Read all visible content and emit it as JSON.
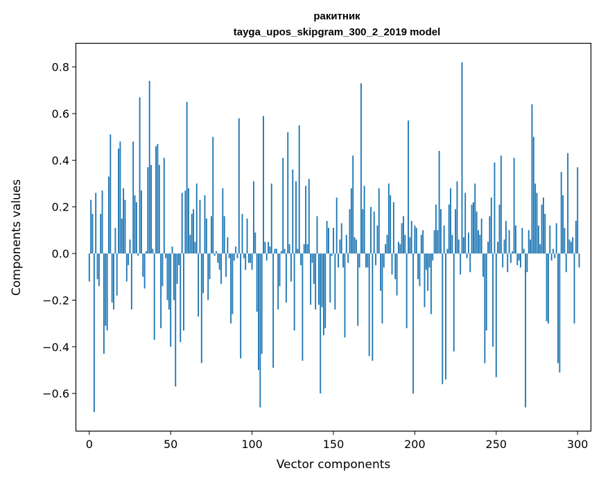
{
  "chart_data": {
    "type": "bar",
    "title": "ракитник",
    "subtitle": "tayga_upos_skipgram_300_2_2019 model",
    "xlabel": "Vector components",
    "ylabel": "Components values",
    "xlim": [
      -8,
      308
    ],
    "ylim": [
      -0.76,
      0.9
    ],
    "xticks": [
      0,
      50,
      100,
      150,
      200,
      250,
      300
    ],
    "xtick_labels": [
      "0",
      "50",
      "100",
      "150",
      "200",
      "250",
      "300"
    ],
    "yticks": [
      -0.6,
      -0.4,
      -0.2,
      0.0,
      0.2,
      0.4,
      0.6,
      0.8
    ],
    "ytick_labels": [
      "−0.6",
      "−0.4",
      "−0.2",
      "0.0",
      "0.2",
      "0.4",
      "0.6",
      "0.8"
    ],
    "grid": false,
    "bar_color": "#1f77b4",
    "values": [
      -0.12,
      0.23,
      0.17,
      -0.68,
      0.26,
      -0.11,
      -0.14,
      0.17,
      0.27,
      -0.43,
      -0.31,
      -0.33,
      0.33,
      0.51,
      -0.21,
      -0.24,
      0.11,
      -0.18,
      0.45,
      0.48,
      0.15,
      0.28,
      0.23,
      -0.12,
      -0.05,
      0.06,
      -0.24,
      0.48,
      0.25,
      0.22,
      -0.01,
      0.67,
      0.27,
      -0.1,
      -0.15,
      0.01,
      0.37,
      0.74,
      0.38,
      0.02,
      -0.37,
      0.46,
      0.47,
      0.38,
      -0.32,
      -0.14,
      0.41,
      -0.02,
      -0.2,
      -0.24,
      -0.4,
      0.03,
      -0.2,
      -0.57,
      -0.13,
      -0.05,
      -0.38,
      0.26,
      -0.33,
      0.27,
      0.65,
      0.28,
      0.08,
      0.17,
      0.19,
      0.05,
      0.3,
      -0.27,
      0.23,
      -0.47,
      -0.17,
      0.25,
      0.15,
      -0.2,
      -0.11,
      0.16,
      0.5,
      -0.01,
      0.01,
      -0.04,
      -0.07,
      -0.13,
      0.28,
      0.16,
      -0.1,
      0.07,
      -0.02,
      -0.3,
      -0.26,
      -0.03,
      0.03,
      -0.02,
      0.58,
      -0.45,
      0.17,
      -0.02,
      -0.07,
      0.15,
      -0.04,
      -0.04,
      -0.07,
      0.31,
      0.09,
      -0.25,
      -0.5,
      -0.66,
      -0.43,
      0.59,
      0.05,
      -0.03,
      0.05,
      0.03,
      0.3,
      -0.49,
      0.02,
      0.02,
      -0.24,
      -0.14,
      0.01,
      0.41,
      0.02,
      -0.21,
      0.52,
      0.04,
      -0.12,
      0.36,
      -0.33,
      0.31,
      0.02,
      0.55,
      -0.05,
      -0.46,
      0.04,
      0.29,
      0.04,
      0.32,
      -0.22,
      -0.04,
      -0.13,
      -0.24,
      0.16,
      -0.22,
      -0.6,
      -0.23,
      -0.35,
      -0.32,
      0.14,
      0.11,
      -0.21,
      -0.01,
      0.11,
      -0.24,
      0.24,
      -0.06,
      0.06,
      0.13,
      -0.06,
      -0.36,
      0.08,
      -0.04,
      0.19,
      0.28,
      0.42,
      0.07,
      0.06,
      -0.31,
      -0.06,
      0.73,
      0.19,
      0.29,
      -0.06,
      -0.06,
      -0.44,
      0.2,
      -0.46,
      0.18,
      -0.05,
      0.12,
      0.28,
      -0.16,
      -0.3,
      -0.06,
      0.04,
      0.08,
      0.3,
      0.25,
      -0.09,
      0.22,
      -0.11,
      -0.18,
      0.05,
      0.04,
      0.13,
      0.16,
      0.08,
      -0.32,
      0.57,
      0.07,
      0.14,
      -0.6,
      0.12,
      0.11,
      -0.11,
      -0.14,
      0.08,
      0.1,
      -0.23,
      -0.07,
      -0.16,
      -0.06,
      -0.26,
      -0.03,
      0.1,
      0.21,
      0.1,
      0.44,
      0.19,
      -0.56,
      0.12,
      -0.54,
      0.02,
      0.21,
      0.28,
      0.08,
      -0.42,
      0.19,
      0.31,
      0.06,
      -0.09,
      0.82,
      0.07,
      0.26,
      -0.02,
      0.09,
      -0.08,
      0.21,
      0.22,
      0.3,
      0.18,
      0.1,
      0.08,
      0.15,
      -0.1,
      -0.47,
      -0.33,
      0.05,
      0.16,
      0.24,
      -0.4,
      0.39,
      -0.53,
      0.05,
      0.21,
      0.42,
      -0.06,
      0.06,
      0.14,
      -0.08,
      0.1,
      -0.04,
      0.01,
      0.41,
      0.12,
      -0.05,
      -0.03,
      -0.06,
      0.11,
      0.02,
      -0.66,
      -0.08,
      0.1,
      0.06,
      0.64,
      0.5,
      0.3,
      0.26,
      0.12,
      0.04,
      0.21,
      0.24,
      0.17,
      -0.29,
      -0.3,
      0.12,
      -0.03,
      0.02,
      -0.02,
      0.13,
      -0.47,
      -0.51,
      0.35,
      0.25,
      0.11,
      -0.08,
      0.43,
      0.06,
      0.05,
      0.07,
      -0.3,
      0.14,
      0.37,
      -0.06
    ]
  }
}
